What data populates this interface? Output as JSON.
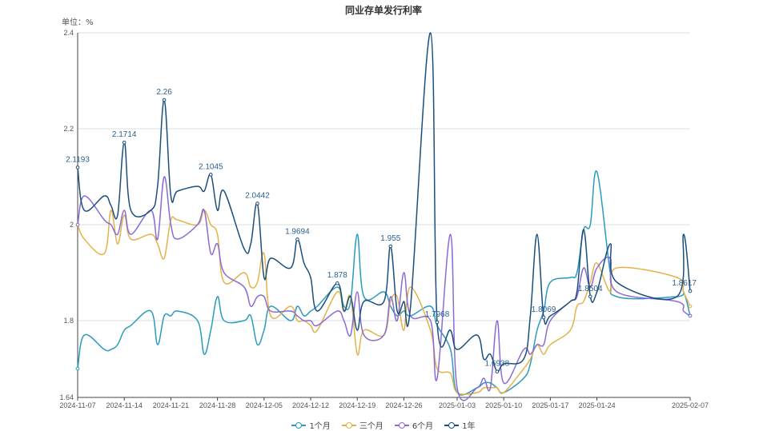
{
  "chart_data": {
    "type": "line",
    "title": "同业存单发行利率",
    "unit_label": "单位：%",
    "ylim": [
      1.64,
      2.4
    ],
    "yticks": [
      1.64,
      1.8,
      2.0,
      2.2,
      2.4
    ],
    "ytick_labels": [
      "1.64",
      "1.8",
      "2",
      "2.2",
      "2.4"
    ],
    "x_dates": [
      "2024-11-07",
      "2024-11-08",
      "2024-11-11",
      "2024-11-12",
      "2024-11-13",
      "2024-11-14",
      "2024-11-15",
      "2024-11-18",
      "2024-11-19",
      "2024-11-20",
      "2024-11-21",
      "2024-11-22",
      "2024-11-25",
      "2024-11-26",
      "2024-11-27",
      "2024-11-28",
      "2024-11-29",
      "2024-12-02",
      "2024-12-03",
      "2024-12-04",
      "2024-12-05",
      "2024-12-06",
      "2024-12-09",
      "2024-12-10",
      "2024-12-11",
      "2024-12-12",
      "2024-12-13",
      "2024-12-16",
      "2024-12-17",
      "2024-12-18",
      "2024-12-19",
      "2024-12-20",
      "2024-12-23",
      "2024-12-24",
      "2024-12-25",
      "2024-12-26",
      "2024-12-27",
      "2024-12-30",
      "2024-12-31",
      "2025-01-02",
      "2025-01-03",
      "2025-01-06",
      "2025-01-07",
      "2025-01-08",
      "2025-01-09",
      "2025-01-10",
      "2025-01-13",
      "2025-01-14",
      "2025-01-15",
      "2025-01-16",
      "2025-01-17",
      "2025-01-20",
      "2025-01-21",
      "2025-01-22",
      "2025-01-23",
      "2025-01-24",
      "2025-01-26",
      "2025-01-27",
      "2025-02-05",
      "2025-02-06",
      "2025-02-07"
    ],
    "xtick_labels": [
      "2024-11-07",
      "2024-11-14",
      "2024-11-21",
      "2024-11-28",
      "2024-12-05",
      "2024-12-12",
      "2024-12-19",
      "2024-12-26",
      "2025-01-03",
      "2025-01-10",
      "2025-01-17",
      "2025-01-24",
      "2025-02-07"
    ],
    "series": [
      {
        "name": "1个月",
        "color": "#2a9bbf",
        "values": [
          1.7,
          1.77,
          1.74,
          1.74,
          1.75,
          1.78,
          1.79,
          1.82,
          1.75,
          1.81,
          1.81,
          1.82,
          1.8,
          1.73,
          1.78,
          1.85,
          1.8,
          1.8,
          1.81,
          1.75,
          1.78,
          1.83,
          1.8,
          1.83,
          1.81,
          1.82,
          1.83,
          1.87,
          1.83,
          1.84,
          1.98,
          1.85,
          1.86,
          1.83,
          1.81,
          1.82,
          1.81,
          1.83,
          1.79,
          1.74,
          1.65,
          1.66,
          1.67,
          1.67,
          1.66,
          1.65,
          1.68,
          1.71,
          1.78,
          1.82,
          1.88,
          1.89,
          1.9,
          1.99,
          2.0,
          2.11,
          1.9,
          1.85,
          1.85,
          1.86,
          1.81
        ]
      },
      {
        "name": "三个月",
        "color": "#e3b24b",
        "values": [
          2.0,
          1.97,
          1.94,
          2.03,
          1.96,
          2.02,
          1.97,
          1.98,
          1.96,
          1.93,
          2.01,
          2.01,
          2.0,
          2.03,
          2.0,
          1.98,
          1.88,
          1.9,
          1.87,
          1.88,
          1.94,
          1.81,
          1.83,
          1.8,
          1.8,
          1.79,
          1.78,
          1.86,
          1.82,
          1.85,
          1.73,
          1.78,
          1.77,
          1.84,
          1.85,
          1.78,
          1.87,
          1.78,
          1.7,
          1.69,
          1.65,
          1.65,
          1.66,
          1.66,
          1.66,
          1.65,
          1.7,
          1.72,
          1.75,
          1.73,
          1.75,
          1.78,
          1.83,
          1.84,
          1.88,
          1.92,
          1.86,
          1.91,
          1.89,
          1.86,
          1.83
        ]
      },
      {
        "name": "6个月",
        "color": "#8a6bd6",
        "values": [
          2.0,
          2.06,
          2.01,
          2.0,
          1.98,
          2.03,
          1.98,
          2.03,
          1.97,
          2.1,
          2.0,
          1.97,
          2.0,
          2.03,
          1.94,
          1.96,
          1.9,
          1.87,
          1.83,
          1.85,
          1.85,
          1.82,
          1.82,
          1.81,
          1.8,
          1.8,
          1.79,
          1.82,
          1.8,
          1.77,
          1.86,
          1.77,
          1.77,
          1.85,
          1.8,
          1.9,
          1.81,
          1.8,
          1.68,
          1.98,
          1.66,
          1.66,
          1.68,
          1.66,
          1.8,
          1.67,
          1.74,
          1.73,
          1.75,
          1.75,
          1.8,
          1.84,
          1.85,
          1.91,
          1.87,
          1.91,
          1.93,
          1.86,
          1.84,
          1.82,
          1.81
        ]
      },
      {
        "name": "1年",
        "color": "#1b4f7a",
        "values": [
          2.1193,
          2.03,
          2.06,
          2.04,
          2.02,
          2.1714,
          2.03,
          2.03,
          2.08,
          2.26,
          2.06,
          2.07,
          2.08,
          2.07,
          2.1045,
          2.03,
          2.07,
          1.95,
          1.96,
          2.0442,
          1.89,
          1.93,
          1.91,
          1.9694,
          1.92,
          1.89,
          1.82,
          1.878,
          1.82,
          1.85,
          1.78,
          1.84,
          1.84,
          1.955,
          1.82,
          1.84,
          1.83,
          2.4,
          1.7968,
          1.78,
          1.74,
          1.77,
          1.72,
          1.73,
          1.6938,
          1.71,
          1.72,
          1.81,
          1.98,
          1.8069,
          1.81,
          1.84,
          1.86,
          1.99,
          1.8504,
          1.86,
          1.96,
          1.88,
          1.85,
          1.98,
          1.8617
        ]
      }
    ],
    "data_labels": [
      {
        "series": 3,
        "index": 0,
        "text": "2.1193"
      },
      {
        "series": 3,
        "index": 5,
        "text": "2.1714"
      },
      {
        "series": 3,
        "index": 9,
        "text": "2.26"
      },
      {
        "series": 3,
        "index": 14,
        "text": "2.1045"
      },
      {
        "series": 3,
        "index": 19,
        "text": "2.0442"
      },
      {
        "series": 3,
        "index": 23,
        "text": "1.9694"
      },
      {
        "series": 3,
        "index": 27,
        "text": "1.878"
      },
      {
        "series": 3,
        "index": 33,
        "text": "1.955"
      },
      {
        "series": 3,
        "index": 38,
        "text": "1.7968"
      },
      {
        "series": 3,
        "index": 44,
        "text": "1.6938"
      },
      {
        "series": 3,
        "index": 49,
        "text": "1.8069"
      },
      {
        "series": 3,
        "index": 54,
        "text": "1.8504"
      },
      {
        "series": 3,
        "index": 60,
        "text": "1.8617"
      }
    ],
    "grid": "horizontal",
    "legend_position": "bottom-center"
  }
}
